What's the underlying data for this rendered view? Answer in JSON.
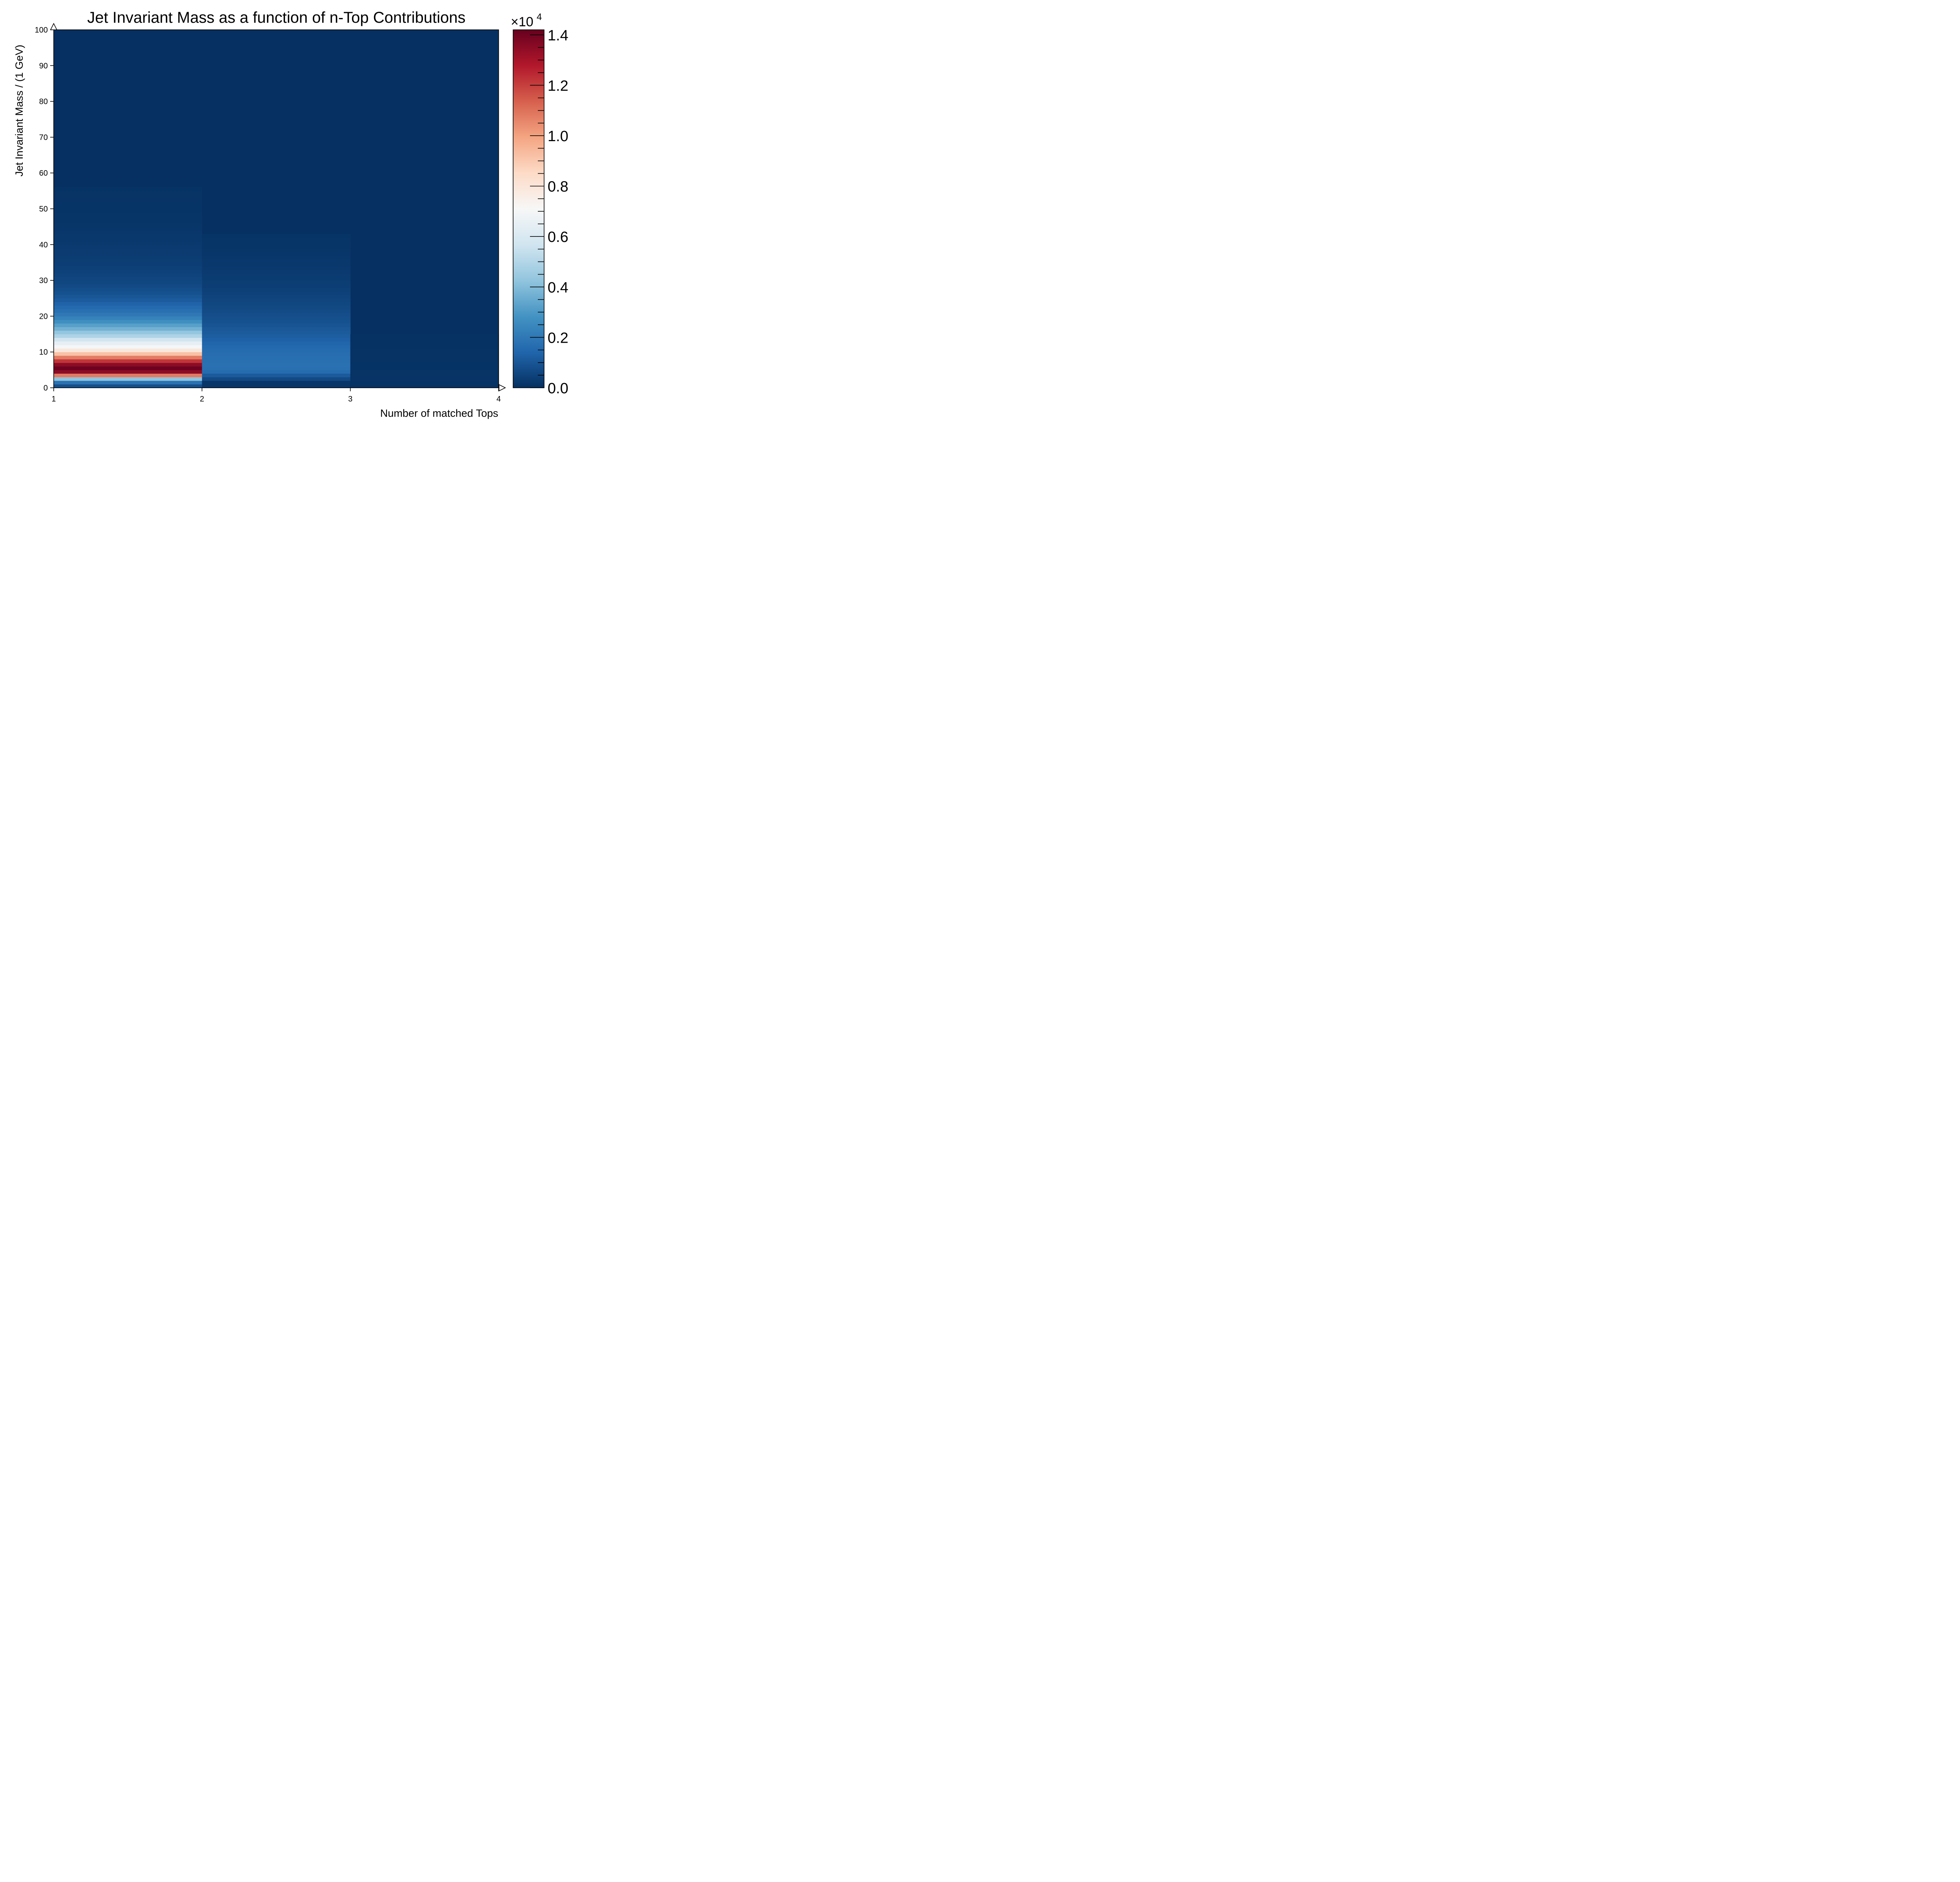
{
  "chart_data": {
    "type": "heatmap",
    "title": "Jet Invariant Mass as a function of n-Top Contributions",
    "xlabel": "Number of matched Tops",
    "ylabel": "Jet Invariant Mass / (1 GeV)",
    "xlim": [
      1,
      4
    ],
    "ylim": [
      0,
      100
    ],
    "x_ticks": [
      "1",
      "2",
      "3",
      "4"
    ],
    "y_ticks": [
      "0",
      "10",
      "20",
      "30",
      "40",
      "50",
      "60",
      "70",
      "80",
      "90",
      "100"
    ],
    "x_bin_edges": [
      1,
      2,
      3,
      4
    ],
    "y_bin_width": 1,
    "colormap": "RdBu_r",
    "colors": {
      "low": "#053061",
      "mid": "#f7f7f7",
      "high": "#67001f"
    },
    "colorbar": {
      "range": [
        0,
        14200
      ],
      "multiplier_text": "×10",
      "multiplier_exponent": "4",
      "tick_labels": [
        "0.0",
        "0.2",
        "0.4",
        "0.6",
        "0.8",
        "1.0",
        "1.2",
        "1.4"
      ]
    },
    "bins": [
      {
        "x_range": [
          1,
          2
        ],
        "y_start": 0,
        "values": [
          800,
          1800,
          4200,
          10800,
          13500,
          14100,
          13500,
          12200,
          10800,
          9200,
          7900,
          7000,
          6500,
          5700,
          4900,
          4300,
          3700,
          3200,
          2700,
          2300,
          2000,
          1750,
          1550,
          1350,
          1150,
          1000,
          880,
          780,
          690,
          610,
          560,
          510,
          460,
          420,
          380,
          350,
          320,
          300,
          280,
          260,
          240,
          220,
          200,
          185,
          170,
          155,
          140,
          130,
          120,
          110,
          100,
          95,
          90,
          85,
          80,
          75
        ]
      },
      {
        "x_range": [
          2,
          3
        ],
        "y_start": 0,
        "values": [
          150,
          150,
          650,
          1100,
          1600,
          1750,
          1780,
          1750,
          1700,
          1650,
          1600,
          1500,
          1400,
          1300,
          1200,
          1100,
          1050,
          950,
          880,
          820,
          760,
          700,
          650,
          600,
          550,
          500,
          450,
          410,
          370,
          340,
          310,
          280,
          260,
          240,
          220,
          200,
          180,
          165,
          150,
          140,
          130,
          120,
          110
        ]
      },
      {
        "x_range": [
          3,
          4
        ],
        "y_start": 0,
        "values": [
          55,
          70,
          90,
          85,
          80,
          75,
          70,
          65,
          60,
          55,
          50,
          45,
          40,
          35,
          30
        ]
      }
    ]
  }
}
